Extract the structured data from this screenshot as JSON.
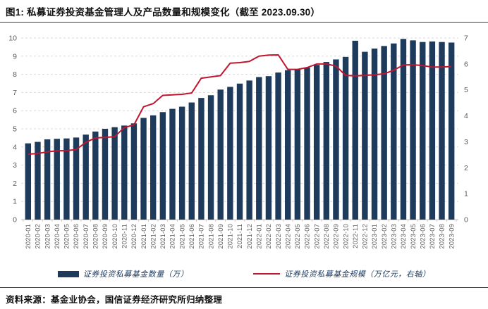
{
  "title": "图1: 私募证券投资基金管理人及产品数量和规模变化（截至 2023.09.30）",
  "source": "资料来源：基金业协会，国信证券经济研究所归纳整理",
  "colors": {
    "bar": "#1f3b5c",
    "line": "#c0152e",
    "grid": "#d9d9d9",
    "axis_line": "#bfbfbf",
    "axis_text": "#595959",
    "title_text": "#111111",
    "legend_text": "#17375e"
  },
  "legend": [
    {
      "label": "证券投资私募基金数量（万）",
      "swatch": "bar-swatch"
    },
    {
      "label": "证券投资私募基金规模（万亿元，右轴）",
      "swatch": "line-swatch"
    }
  ],
  "chart_data": {
    "type": "bar",
    "title": "私募证券投资基金管理人及产品数量和规模变化",
    "categories": [
      "2020-01",
      "2020-02",
      "2020-03",
      "2020-04",
      "2020-05",
      "2020-06",
      "2020-07",
      "2020-08",
      "2020-09",
      "2020-10",
      "2020-11",
      "2020-12",
      "2021-01",
      "2021-02",
      "2021-03",
      "2021-04",
      "2021-05",
      "2021-06",
      "2021-07",
      "2021-08",
      "2021-09",
      "2021-10",
      "2021-11",
      "2021-12",
      "2022-01",
      "2022-02",
      "2022-03",
      "2022-04",
      "2022-05",
      "2022-06",
      "2022-07",
      "2022-08",
      "2022-09",
      "2022-10",
      "2022-11",
      "2022-12",
      "2023-01",
      "2023-02",
      "2023-03",
      "2023-04",
      "2023-05",
      "2023-06",
      "2023-07",
      "2023-08",
      "2023-09"
    ],
    "series": [
      {
        "name": "证券投资私募基金数量（万）",
        "type": "bar",
        "axis": "left",
        "values": [
          4.2,
          4.28,
          4.42,
          4.45,
          4.47,
          4.52,
          4.68,
          4.85,
          5.0,
          5.09,
          5.18,
          5.3,
          5.6,
          5.74,
          5.92,
          6.1,
          6.22,
          6.45,
          6.7,
          6.85,
          7.16,
          7.31,
          7.49,
          7.66,
          7.85,
          7.9,
          8.1,
          8.23,
          8.26,
          8.38,
          8.52,
          8.68,
          8.82,
          8.96,
          9.85,
          9.24,
          9.42,
          9.56,
          9.7,
          9.95,
          9.87,
          9.78,
          9.81,
          9.78,
          9.75
        ]
      },
      {
        "name": "证券投资私募基金规模（万亿元，右轴）",
        "type": "line",
        "axis": "right",
        "values": [
          2.52,
          2.55,
          2.61,
          2.65,
          2.66,
          2.7,
          2.98,
          3.15,
          3.17,
          3.2,
          3.55,
          3.65,
          4.35,
          4.47,
          4.79,
          4.81,
          4.83,
          4.88,
          5.45,
          5.5,
          5.55,
          6.03,
          6.05,
          6.1,
          6.3,
          6.34,
          6.35,
          5.79,
          5.79,
          5.86,
          6.0,
          6.0,
          5.92,
          5.56,
          5.54,
          5.56,
          5.58,
          5.62,
          5.76,
          5.96,
          5.97,
          5.94,
          5.88,
          5.88,
          5.9
        ]
      }
    ],
    "left_axis": {
      "min": 0,
      "max": 10,
      "ticks": [
        0,
        1,
        2,
        3,
        4,
        5,
        6,
        7,
        8,
        9,
        10
      ]
    },
    "right_axis": {
      "min": 0,
      "max": 7,
      "ticks": [
        0,
        1,
        2,
        3,
        4,
        5,
        6,
        7
      ]
    },
    "grid": "dashed-horizontal",
    "legend_position": "bottom"
  }
}
